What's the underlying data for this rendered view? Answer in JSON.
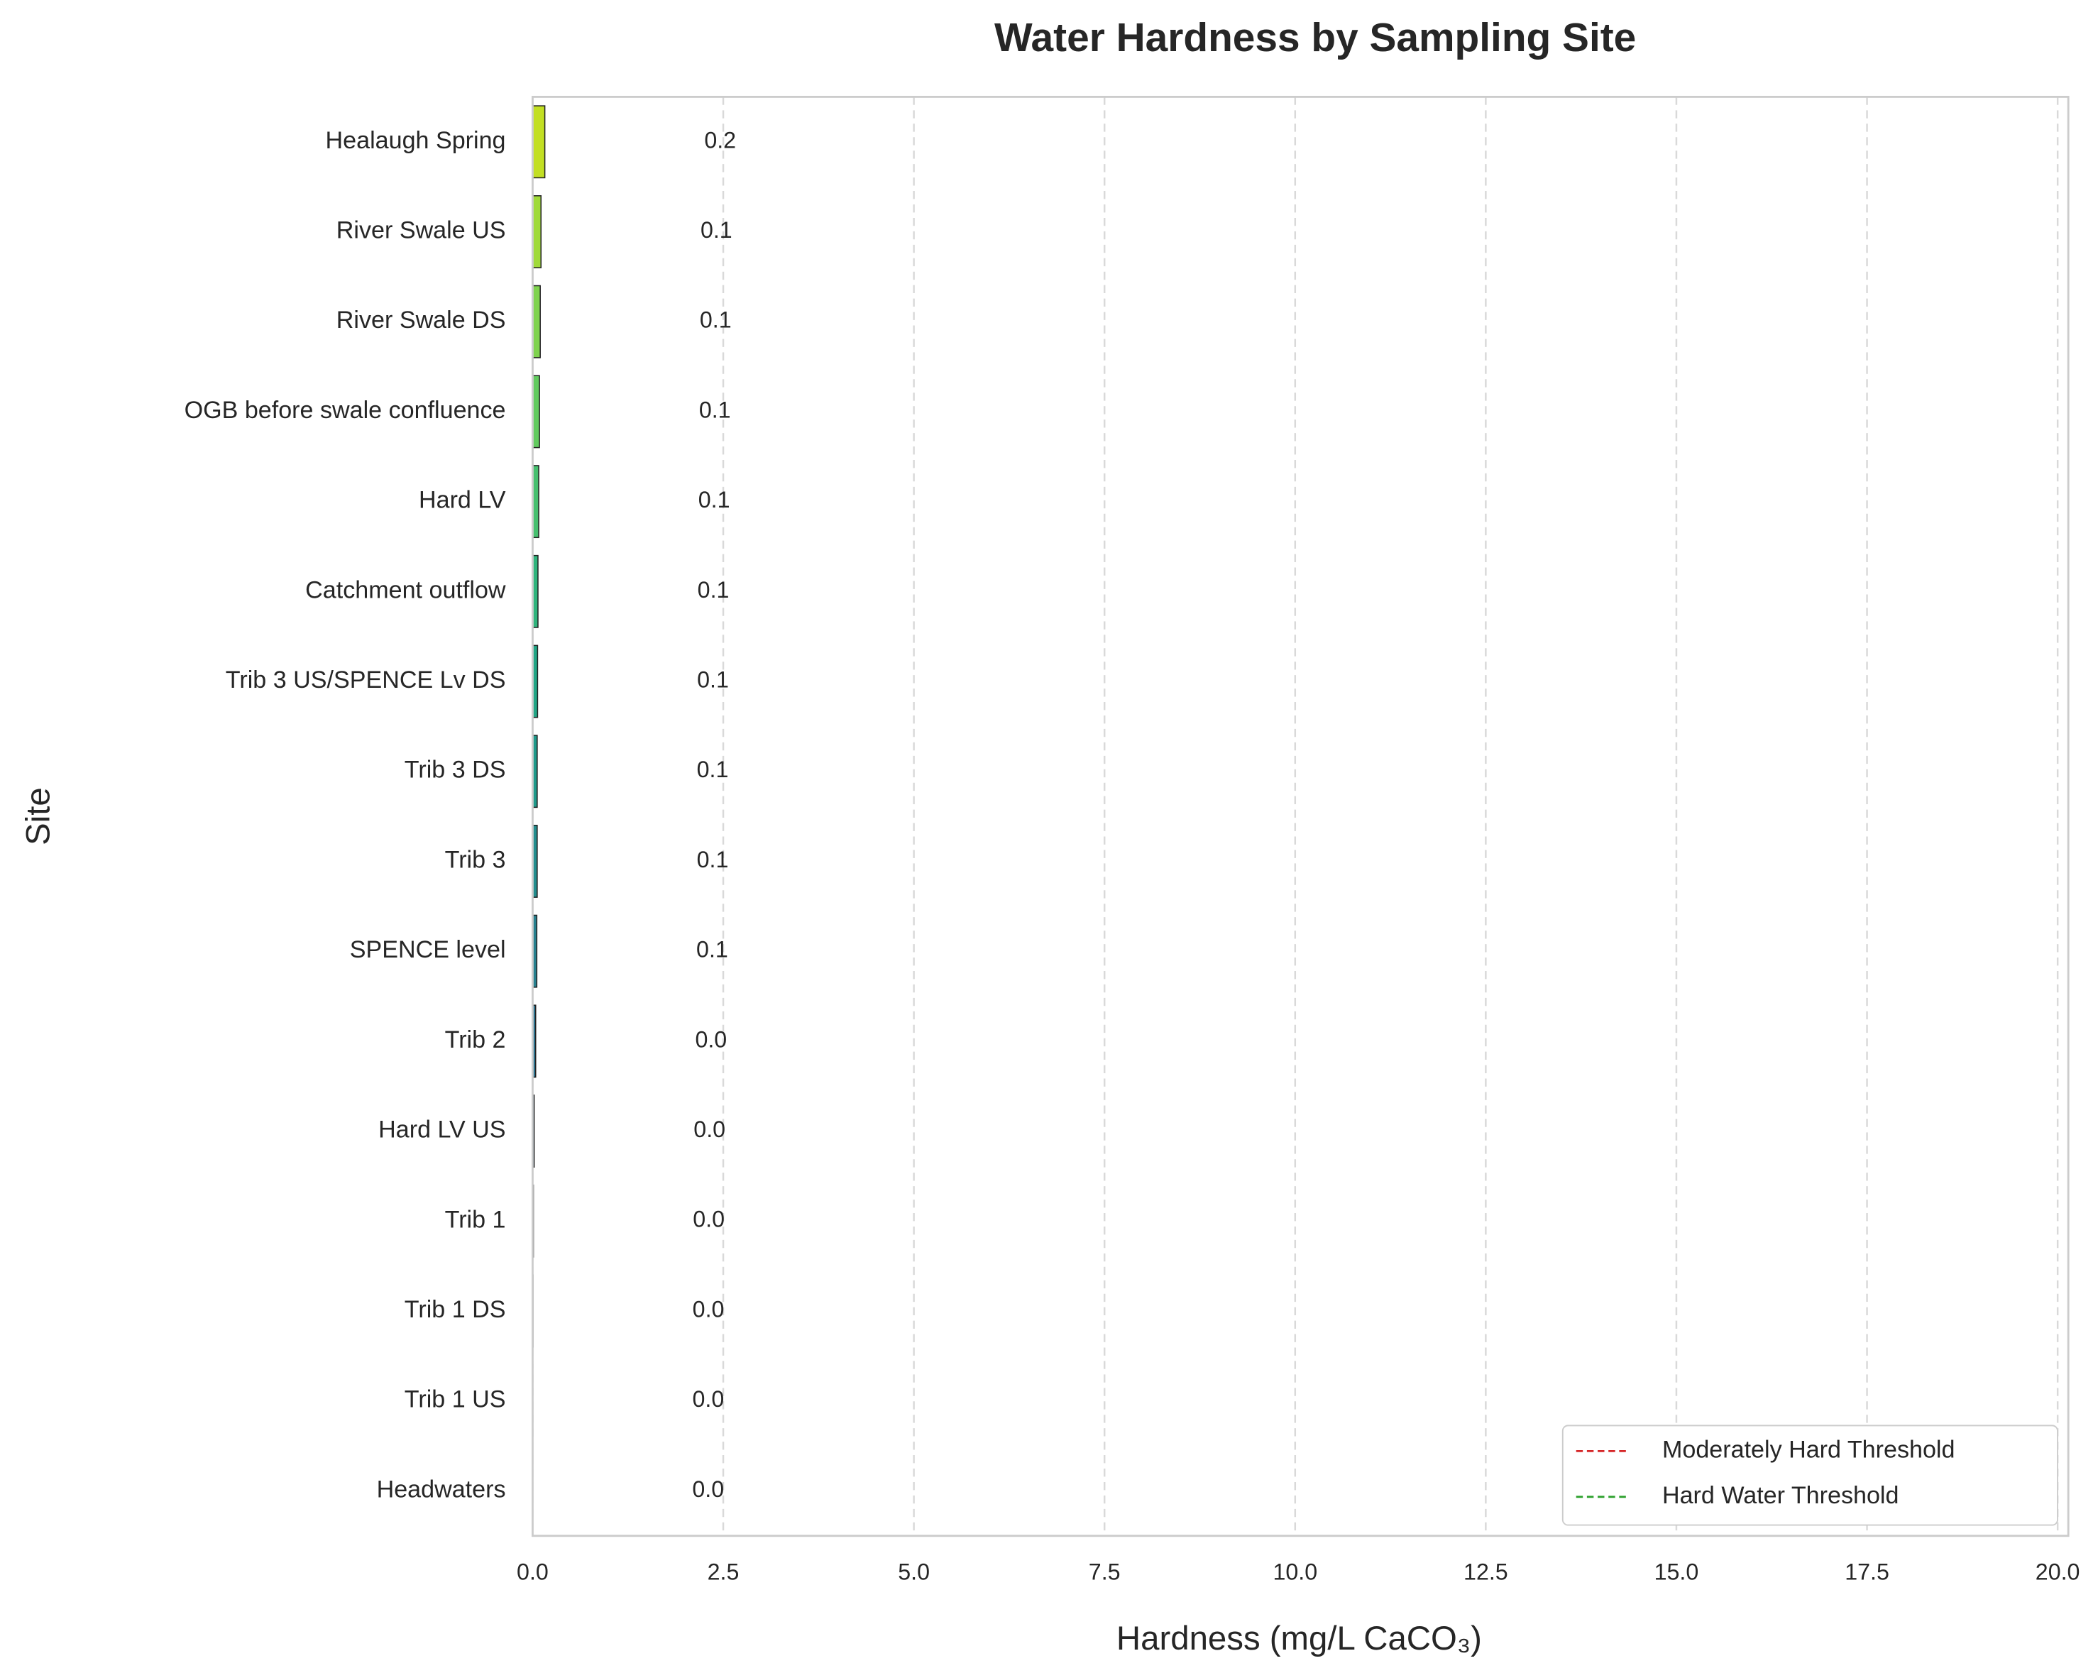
{
  "chart_data": {
    "type": "barh",
    "title": "Water Hardness by Sampling Site",
    "x_label": "Hardness (mg/L CaCO₃)",
    "y_label": "Site",
    "categories": [
      "Healaugh Spring",
      "River Swale US",
      "River Swale DS",
      "OGB before swale confluence",
      "Hard LV",
      "Catchment outflow",
      "Trib 3 US/SPENCE Lv DS",
      "Trib 3 DS",
      "Trib 3",
      "SPENCE level",
      "Trib 2",
      "Hard LV US",
      "Trib 1",
      "Trib 1 DS",
      "Trib 1 US",
      "Headwaters"
    ],
    "values": [
      0.16,
      0.11,
      0.1,
      0.09,
      0.08,
      0.07,
      0.065,
      0.06,
      0.06,
      0.055,
      0.04,
      0.02,
      0.01,
      0.005,
      0.003,
      0.002
    ],
    "value_labels": [
      "0.2",
      "0.1",
      "0.1",
      "0.1",
      "0.1",
      "0.1",
      "0.1",
      "0.1",
      "0.1",
      "0.1",
      "0.0",
      "0.0",
      "0.0",
      "0.0",
      "0.0",
      "0.0"
    ],
    "colors": [
      "#c2df23",
      "#a0da39",
      "#7fd34e",
      "#62cb5f",
      "#46c06f",
      "#2fb47c",
      "#21a685",
      "#1e9a8a",
      "#228d8d",
      "#27808e",
      "#2c728e",
      "#31648e",
      "#37568c",
      "#3e4a89",
      "#433d84",
      "#482f7c"
    ],
    "xlim": [
      0,
      20.14
    ],
    "xticks": [
      {
        "value": 0,
        "label": "0.0"
      },
      {
        "value": 2.5,
        "label": "2.5"
      },
      {
        "value": 5,
        "label": "5.0"
      },
      {
        "value": 7.5,
        "label": "7.5"
      },
      {
        "value": 10,
        "label": "10.0"
      },
      {
        "value": 12.5,
        "label": "12.5"
      },
      {
        "value": 15,
        "label": "15.0"
      },
      {
        "value": 17.5,
        "label": "17.5"
      },
      {
        "value": 20,
        "label": "20.0"
      }
    ],
    "grid": true,
    "legend_position": "lower right",
    "legend": [
      {
        "name": "Moderately Hard Threshold",
        "color": "#d62728"
      },
      {
        "name": "Hard Water Threshold",
        "color": "#2ca02c"
      }
    ]
  }
}
